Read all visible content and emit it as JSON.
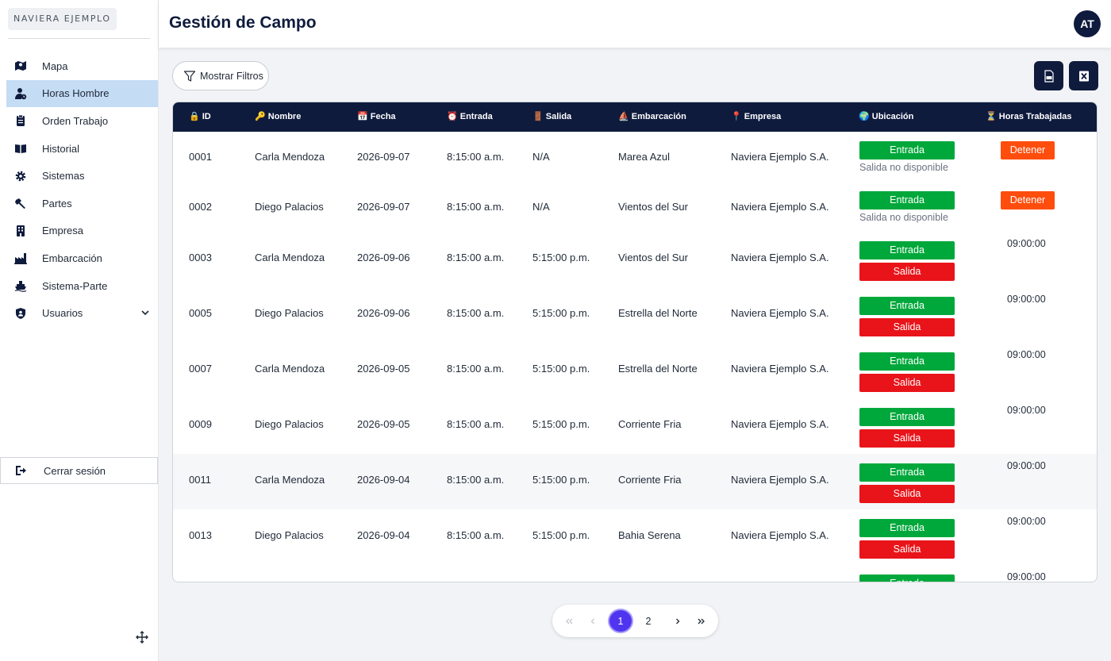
{
  "brand": "NAVIERA EJEMPLO",
  "sidebar": {
    "items": [
      {
        "label": "Mapa",
        "icon": "map-icon"
      },
      {
        "label": "Horas Hombre",
        "icon": "user-clock-icon",
        "active": true
      },
      {
        "label": "Orden Trabajo",
        "icon": "clipboard-icon"
      },
      {
        "label": "Historial",
        "icon": "book-open-icon"
      },
      {
        "label": "Sistemas",
        "icon": "gear-icon"
      },
      {
        "label": "Partes",
        "icon": "wrench-icon"
      },
      {
        "label": "Empresa",
        "icon": "building-icon"
      },
      {
        "label": "Embarcación",
        "icon": "industry-icon"
      },
      {
        "label": "Sistema-Parte",
        "icon": "ship-icon"
      },
      {
        "label": "Usuarios",
        "icon": "user-shield-icon",
        "expandable": true
      }
    ],
    "logout": "Cerrar sesión"
  },
  "header": {
    "title": "Gestión de Campo",
    "avatar": "AT"
  },
  "toolbar": {
    "filter_label": "Mostrar Filtros"
  },
  "table": {
    "columns": [
      "🔒 ID",
      "🔑 Nombre",
      "📅 Fecha",
      "⏰ Entrada",
      "🚪 Salida",
      "⛵ Embarcación",
      "📍 Empresa",
      "🌍 Ubicación",
      "⏳ Horas Trabajadas"
    ],
    "entrada_label": "Entrada",
    "salida_label": "Salida",
    "no_salida_label": "Salida no disponible",
    "stop_label": "Detener",
    "rows": [
      {
        "id": "0001",
        "nombre": "Carla Mendoza",
        "fecha": "2026-09-07",
        "entrada": "8:15:00 a.m.",
        "salida": "N/A",
        "embarcacion": "Marea Azul",
        "empresa": "Naviera Ejemplo S.A.",
        "active": true,
        "horas": ""
      },
      {
        "id": "0002",
        "nombre": "Diego Palacios",
        "fecha": "2026-09-07",
        "entrada": "8:15:00 a.m.",
        "salida": "N/A",
        "embarcacion": "Vientos del Sur",
        "empresa": "Naviera Ejemplo S.A.",
        "active": true,
        "horas": ""
      },
      {
        "id": "0003",
        "nombre": "Carla Mendoza",
        "fecha": "2026-09-06",
        "entrada": "8:15:00 a.m.",
        "salida": "5:15:00 p.m.",
        "embarcacion": "Vientos del Sur",
        "empresa": "Naviera Ejemplo S.A.",
        "active": false,
        "horas": "09:00:00"
      },
      {
        "id": "0005",
        "nombre": "Diego Palacios",
        "fecha": "2026-09-06",
        "entrada": "8:15:00 a.m.",
        "salida": "5:15:00 p.m.",
        "embarcacion": "Estrella del Norte",
        "empresa": "Naviera Ejemplo S.A.",
        "active": false,
        "horas": "09:00:00"
      },
      {
        "id": "0007",
        "nombre": "Carla Mendoza",
        "fecha": "2026-09-05",
        "entrada": "8:15:00 a.m.",
        "salida": "5:15:00 p.m.",
        "embarcacion": "Estrella del Norte",
        "empresa": "Naviera Ejemplo S.A.",
        "active": false,
        "horas": "09:00:00"
      },
      {
        "id": "0009",
        "nombre": "Diego Palacios",
        "fecha": "2026-09-05",
        "entrada": "8:15:00 a.m.",
        "salida": "5:15:00 p.m.",
        "embarcacion": "Corriente Fria",
        "empresa": "Naviera Ejemplo S.A.",
        "active": false,
        "horas": "09:00:00"
      },
      {
        "id": "0011",
        "nombre": "Carla Mendoza",
        "fecha": "2026-09-04",
        "entrada": "8:15:00 a.m.",
        "salida": "5:15:00 p.m.",
        "embarcacion": "Corriente Fria",
        "empresa": "Naviera Ejemplo S.A.",
        "active": false,
        "horas": "09:00:00",
        "highlight": true
      },
      {
        "id": "0013",
        "nombre": "Diego Palacios",
        "fecha": "2026-09-04",
        "entrada": "8:15:00 a.m.",
        "salida": "5:15:00 p.m.",
        "embarcacion": "Bahia Serena",
        "empresa": "Naviera Ejemplo S.A.",
        "active": false,
        "horas": "09:00:00"
      },
      {
        "id": "",
        "nombre": "",
        "fecha": "",
        "entrada": "",
        "salida": "",
        "embarcacion": "",
        "empresa": "",
        "active": false,
        "horas": "09:00:00",
        "partial": true
      }
    ]
  },
  "pagination": {
    "pages": [
      "1",
      "2"
    ],
    "current": "1"
  },
  "colors": {
    "navy": "#0f1b3d",
    "active_nav": "#c5dcf5",
    "entrada": "#00a83b",
    "salida": "#e8141a",
    "detener": "#ff4d0d",
    "page_current": "#4f35f0"
  }
}
